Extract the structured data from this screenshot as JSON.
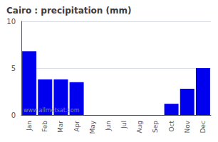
{
  "chart_data": {
    "type": "bar",
    "title": "Cairo : precipitation (mm)",
    "categories": [
      "Jan",
      "Feb",
      "Mar",
      "Apr",
      "May",
      "Jun",
      "Jul",
      "Aug",
      "Sep",
      "Oct",
      "Nov",
      "Dec"
    ],
    "values": [
      6.8,
      3.8,
      3.8,
      3.5,
      0.0,
      0.0,
      0.0,
      0.0,
      0.0,
      1.2,
      2.8,
      5.0
    ],
    "color": "#0000ee",
    "ylim": [
      0,
      10
    ],
    "yticks": [
      0,
      5,
      10
    ],
    "grid": true,
    "annotations": [
      "www.allmetsat.com"
    ]
  }
}
